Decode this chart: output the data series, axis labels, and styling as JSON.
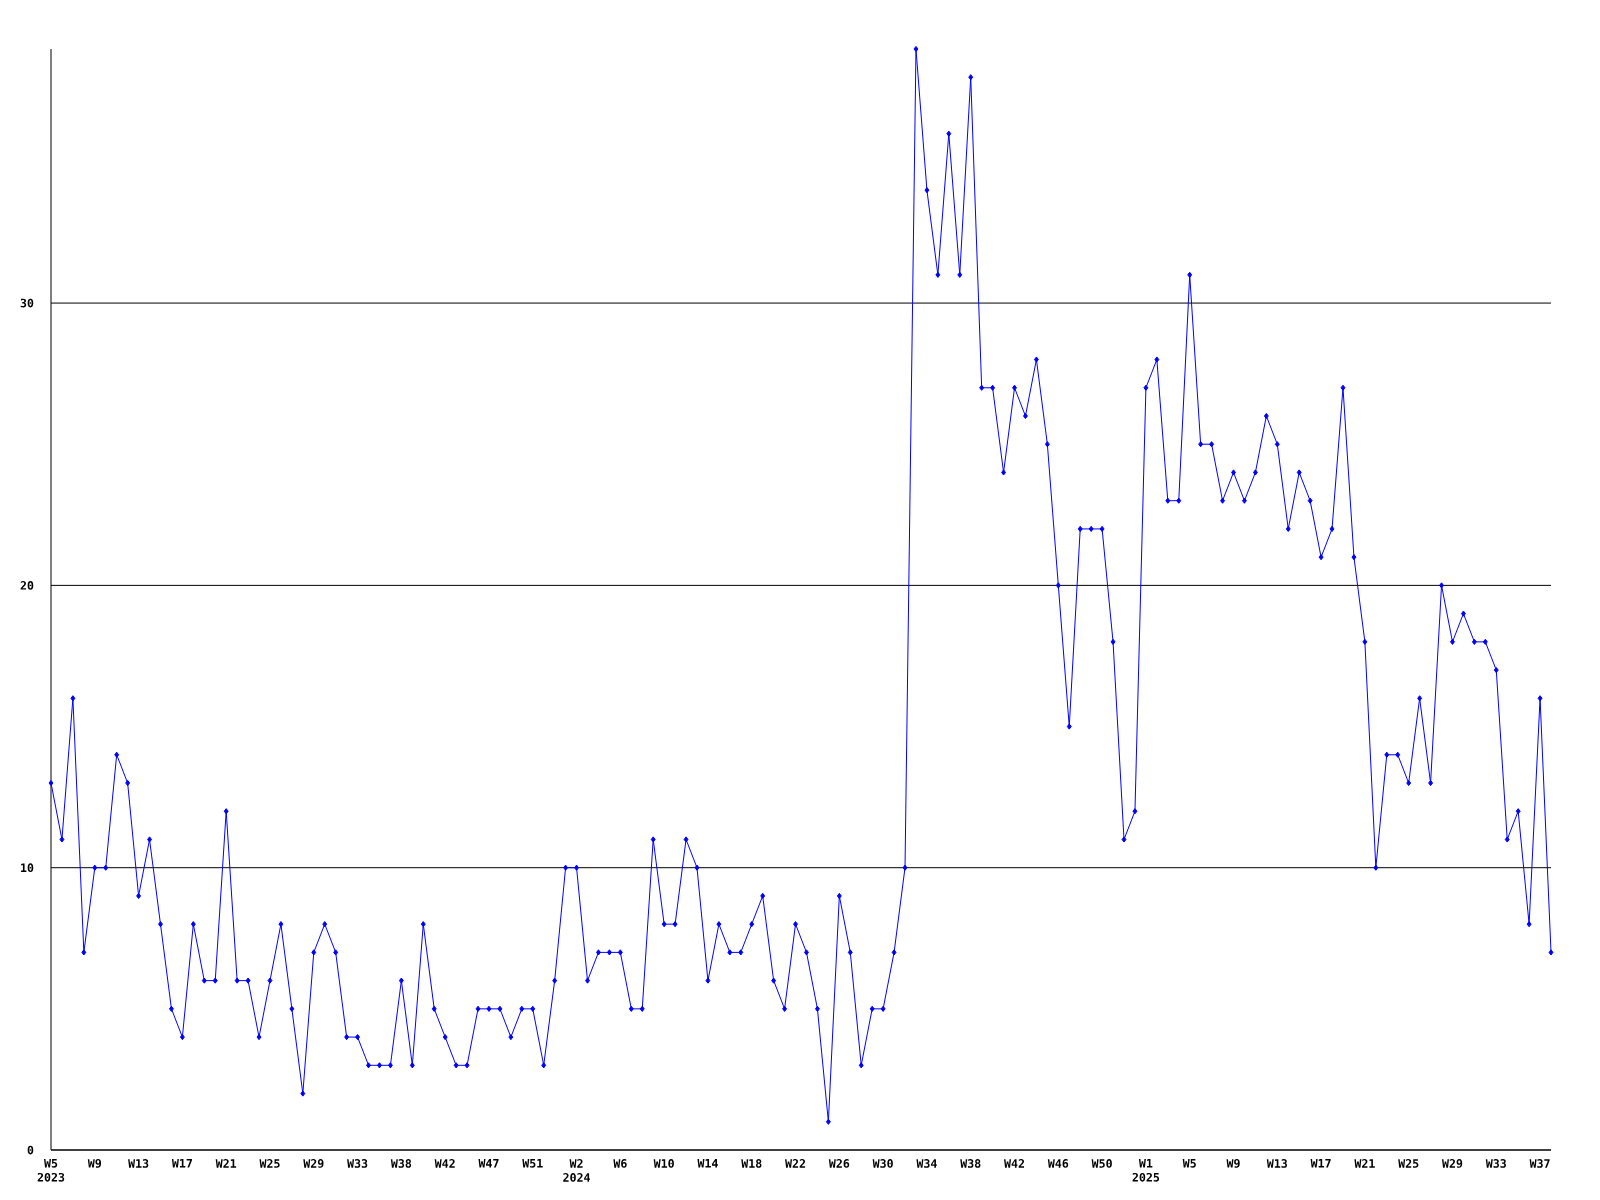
{
  "chart_data": {
    "type": "line",
    "categories": [
      "W5 2023",
      null,
      null,
      null,
      "W9",
      null,
      null,
      null,
      "W13",
      null,
      null,
      null,
      "W17",
      null,
      null,
      null,
      "W21",
      null,
      null,
      null,
      "W25",
      null,
      null,
      null,
      "W29",
      null,
      null,
      null,
      "W33",
      null,
      null,
      null,
      "W38",
      null,
      null,
      null,
      "W42",
      null,
      null,
      null,
      "W47",
      null,
      null,
      null,
      "W51",
      null,
      null,
      null,
      "W2 2024",
      null,
      null,
      null,
      "W6",
      null,
      null,
      null,
      "W10",
      null,
      null,
      null,
      "W14",
      null,
      null,
      null,
      "W18",
      null,
      null,
      null,
      "W22",
      null,
      null,
      null,
      "W26",
      null,
      null,
      null,
      "W30",
      null,
      null,
      null,
      "W34",
      null,
      null,
      null,
      "W38",
      null,
      null,
      null,
      "W42",
      null,
      null,
      null,
      "W46",
      null,
      null,
      null,
      "W50",
      null,
      null,
      null,
      "W1 2025",
      null,
      null,
      null,
      "W5",
      null,
      null,
      null,
      "W9",
      null,
      null,
      null,
      "W13",
      null,
      null,
      null,
      "W17",
      null,
      null,
      null,
      "W21",
      null,
      null,
      null,
      "W25",
      null,
      null,
      null,
      "W29",
      null,
      null,
      null,
      "W33",
      null,
      null,
      null,
      "W37",
      null
    ],
    "values": [
      13,
      11,
      16,
      7,
      10,
      10,
      14,
      13,
      9,
      11,
      8,
      5,
      4,
      8,
      6,
      6,
      12,
      6,
      6,
      4,
      6,
      8,
      5,
      2,
      7,
      8,
      7,
      4,
      4,
      3,
      3,
      3,
      6,
      3,
      8,
      5,
      4,
      3,
      3,
      5,
      5,
      5,
      4,
      5,
      5,
      3,
      6,
      10,
      10,
      6,
      7,
      7,
      7,
      5,
      5,
      11,
      8,
      8,
      11,
      10,
      6,
      8,
      7,
      7,
      8,
      9,
      6,
      5,
      8,
      7,
      5,
      1,
      9,
      7,
      3,
      5,
      5,
      7,
      10,
      39,
      34,
      31,
      36,
      31,
      38,
      27,
      27,
      24,
      27,
      26,
      28,
      25,
      20,
      15,
      22,
      22,
      22,
      18,
      11,
      12,
      27,
      28,
      23,
      23,
      31,
      25,
      25,
      23,
      24,
      23,
      24,
      26,
      25,
      22,
      24,
      23,
      21,
      22,
      27,
      21,
      18,
      10,
      14,
      14,
      13,
      16,
      13,
      20,
      18,
      19,
      18,
      18,
      17,
      11,
      12,
      8,
      16,
      7
    ],
    "color": "#0000ff",
    "marker": "diamond",
    "grid": "y",
    "ylim": [
      0,
      39
    ],
    "yticks": [
      0,
      10,
      20,
      30
    ]
  }
}
